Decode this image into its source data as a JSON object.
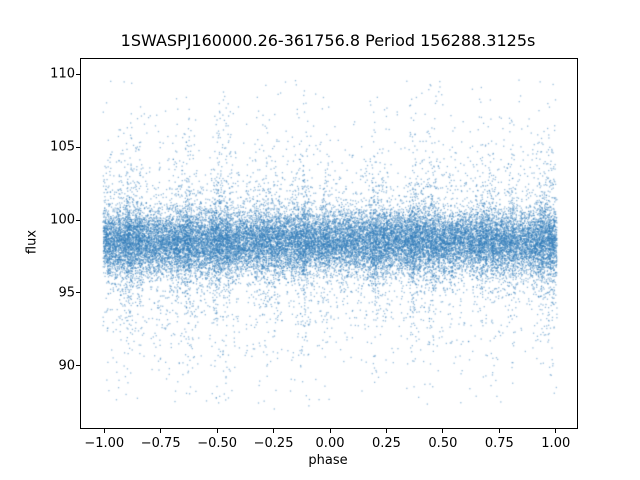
{
  "figure": {
    "title": "1SWASPJ160000.26-361756.8 Period 156288.3125s"
  },
  "chart_data": {
    "type": "scatter",
    "title": "1SWASPJ160000.26-361756.8 Period 156288.3125s",
    "xlabel": "phase",
    "ylabel": "flux",
    "xlim": [
      -1.103,
      1.094
    ],
    "ylim": [
      85.74,
      111.05
    ],
    "grid": false,
    "legend": "none",
    "xticks": {
      "values": [
        -1.0,
        -0.75,
        -0.5,
        -0.25,
        0.0,
        0.25,
        0.5,
        0.75,
        1.0
      ],
      "labels": [
        "−1.00",
        "−0.75",
        "−0.50",
        "−0.25",
        "0.00",
        "0.25",
        "0.50",
        "0.75",
        "1.00"
      ]
    },
    "yticks": {
      "values": [
        90,
        95,
        100,
        105,
        110
      ],
      "labels": [
        "90",
        "95",
        "100",
        "105",
        "110"
      ]
    },
    "marker_color": "#2f7cba",
    "marker_alpha": 0.5,
    "marker_size_px": 1.3,
    "distribution": {
      "note": "dense folded light curve; ~30k points, flux centered near 98.5 with heavy tails",
      "n_points": 30000,
      "phase_min": -1.005,
      "phase_max": 1.005,
      "flux_mean": 98.5,
      "core_fraction": 0.7,
      "core_sigma": 1.05,
      "mid_fraction": 0.18,
      "mid_sigma": 2.1,
      "tail_sigma": 4.8,
      "flux_min": 86.9,
      "flux_max": 109.6,
      "n_columns": 46,
      "column_jitter": 0.013,
      "column_prob": 0.7,
      "seed": 42
    }
  }
}
